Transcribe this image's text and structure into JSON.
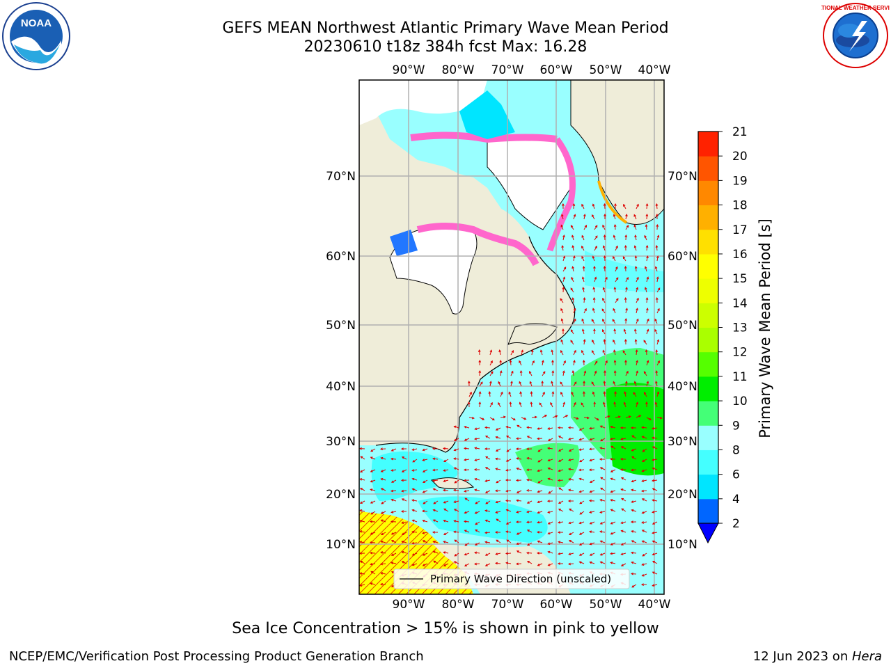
{
  "header": {
    "title_line1": "GEFS MEAN Northwest Atlantic Primary Wave Mean Period",
    "title_line2": "20230610 t18z 384h fcst   Max: 16.28",
    "left_logo": {
      "name": "noaa-logo",
      "text": "NOAA"
    },
    "right_logo": {
      "name": "nws-logo",
      "text": "NATIONAL WEATHER SERVICE"
    }
  },
  "map": {
    "lon_labels": [
      "90°W",
      "80°W",
      "70°W",
      "60°W",
      "50°W",
      "40°W"
    ],
    "lat_labels": [
      "70°N",
      "60°N",
      "50°N",
      "40°N",
      "30°N",
      "20°N",
      "10°N"
    ],
    "legend_label": "Primary Wave Direction (unscaled)",
    "colors": {
      "land": "#efedd9",
      "ice_pink": "#ff66cc",
      "ice_orange": "#ffb000",
      "water_cyan": "#66ffff",
      "water_light": "#99ffff",
      "green": "#44ff44",
      "arrow": "#dd0000",
      "grid": "#b0b0b0",
      "yellow": "#ffff00"
    }
  },
  "colorbar": {
    "label": "Primary Wave Mean Period [s]",
    "ticks": [
      "2",
      "4",
      "6",
      "8",
      "9",
      "10",
      "11",
      "12",
      "13",
      "14",
      "15",
      "16",
      "17",
      "18",
      "19",
      "20",
      "21"
    ],
    "colors": [
      "#0066ff",
      "#00e5ff",
      "#44ffff",
      "#99ffff",
      "#44ff77",
      "#00ee00",
      "#55ff00",
      "#aaff00",
      "#ccff00",
      "#eeff00",
      "#ffff00",
      "#ffe000",
      "#ffb000",
      "#ff8800",
      "#ff5500",
      "#ff2200"
    ],
    "extend_color": "#0000ff"
  },
  "footer": {
    "caption": "Sea Ice Concentration > 15% is shown in pink to yellow",
    "left": "NCEP/EMC/Verification Post Processing Product Generation Branch",
    "right_prefix": "12 Jun 2023 on ",
    "right_host": "Hera"
  }
}
